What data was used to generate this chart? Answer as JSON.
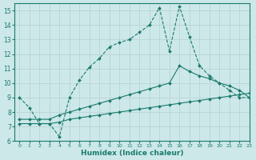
{
  "xlabel": "Humidex (Indice chaleur)",
  "bg_color": "#cce8e8",
  "grid_color": "#c8dede",
  "line_color": "#1a7a6e",
  "xlim": [
    -0.5,
    23
  ],
  "ylim": [
    6,
    15.5
  ],
  "xticks": [
    0,
    1,
    2,
    3,
    4,
    5,
    6,
    7,
    8,
    9,
    10,
    11,
    12,
    13,
    14,
    15,
    16,
    17,
    18,
    19,
    20,
    21,
    22,
    23
  ],
  "yticks": [
    6,
    7,
    8,
    9,
    10,
    11,
    12,
    13,
    14,
    15
  ],
  "line1_x": [
    0,
    1,
    2,
    3,
    4,
    5,
    6,
    7,
    8,
    9,
    10,
    11,
    12,
    13,
    14,
    15,
    16,
    17,
    18,
    19,
    20,
    21,
    22,
    23
  ],
  "line1_y": [
    9.0,
    8.3,
    7.2,
    7.2,
    6.3,
    9.0,
    10.2,
    11.1,
    11.7,
    12.5,
    12.8,
    13.0,
    13.5,
    14.0,
    15.2,
    12.2,
    15.3,
    13.2,
    11.2,
    10.5,
    10.0,
    9.5,
    9.0,
    9.0
  ],
  "line2_x": [
    0,
    1,
    2,
    3,
    4,
    5,
    6,
    7,
    8,
    9,
    10,
    11,
    12,
    13,
    14,
    15,
    16,
    17,
    18,
    19,
    20,
    21,
    22,
    23
  ],
  "line2_y": [
    7.5,
    7.5,
    7.5,
    7.5,
    7.8,
    8.0,
    8.2,
    8.4,
    8.6,
    8.8,
    9.0,
    9.2,
    9.4,
    9.6,
    9.8,
    10.0,
    11.2,
    10.8,
    10.5,
    10.3,
    10.0,
    9.8,
    9.5,
    9.0
  ],
  "line3_x": [
    0,
    1,
    2,
    3,
    4,
    5,
    6,
    7,
    8,
    9,
    10,
    11,
    12,
    13,
    14,
    15,
    16,
    17,
    18,
    19,
    20,
    21,
    22,
    23
  ],
  "line3_y": [
    7.2,
    7.2,
    7.2,
    7.2,
    7.3,
    7.5,
    7.6,
    7.7,
    7.8,
    7.9,
    8.0,
    8.1,
    8.2,
    8.3,
    8.4,
    8.5,
    8.6,
    8.7,
    8.8,
    8.9,
    9.0,
    9.1,
    9.2,
    9.3
  ]
}
